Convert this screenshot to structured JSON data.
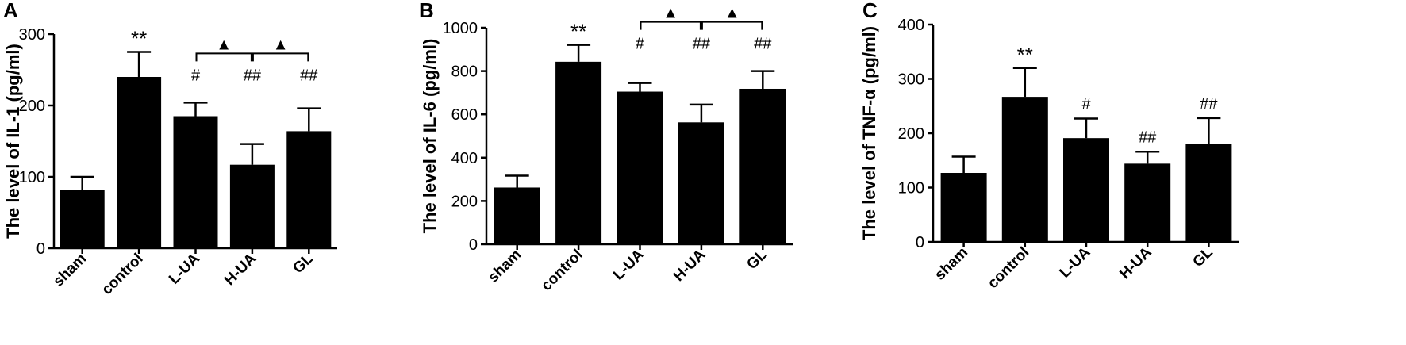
{
  "chart_data": [
    {
      "type": "bar",
      "panel_label": "A",
      "ylabel": "The level of IL-1 (pg/ml)",
      "categories": [
        "sham",
        "control",
        "L-UA",
        "H-UA",
        "GL"
      ],
      "values": [
        82,
        240,
        185,
        117,
        164
      ],
      "errors": [
        18,
        35,
        19,
        29,
        32
      ],
      "ylim": [
        0,
        300
      ],
      "yticks": [
        0,
        100,
        200,
        300
      ],
      "bar_color": "#000000",
      "annotations": [
        {
          "category": "control",
          "text": "**"
        },
        {
          "category": "L-UA",
          "text": "#"
        },
        {
          "category": "H-UA",
          "text": "##"
        },
        {
          "category": "GL",
          "text": "##"
        }
      ],
      "brackets": [
        {
          "from": "L-UA",
          "to": "H-UA",
          "text": "▲"
        },
        {
          "from": "H-UA",
          "to": "GL",
          "text": "▲"
        }
      ]
    },
    {
      "type": "bar",
      "panel_label": "B",
      "ylabel": "The level of IL-6 (pg/ml)",
      "categories": [
        "sham",
        "control",
        "L-UA",
        "H-UA",
        "GL"
      ],
      "values": [
        262,
        843,
        705,
        563,
        718
      ],
      "errors": [
        55,
        78,
        40,
        82,
        82
      ],
      "ylim": [
        0,
        1000
      ],
      "yticks": [
        0,
        200,
        400,
        600,
        800,
        1000
      ],
      "bar_color": "#000000",
      "annotations": [
        {
          "category": "control",
          "text": "**"
        },
        {
          "category": "L-UA",
          "text": "#"
        },
        {
          "category": "H-UA",
          "text": "##"
        },
        {
          "category": "GL",
          "text": "##"
        }
      ],
      "brackets": [
        {
          "from": "L-UA",
          "to": "H-UA",
          "text": "▲"
        },
        {
          "from": "H-UA",
          "to": "GL",
          "text": "▲"
        }
      ]
    },
    {
      "type": "bar",
      "panel_label": "C",
      "ylabel": "The level of TNF-α (pg/ml)",
      "categories": [
        "sham",
        "control",
        "L-UA",
        "H-UA",
        "GL"
      ],
      "values": [
        127,
        267,
        191,
        144,
        180
      ],
      "errors": [
        30,
        53,
        36,
        22,
        48
      ],
      "ylim": [
        0,
        400
      ],
      "yticks": [
        0,
        100,
        200,
        300,
        400
      ],
      "bar_color": "#000000",
      "annotations": [
        {
          "category": "control",
          "text": "**"
        },
        {
          "category": "L-UA",
          "text": "#"
        },
        {
          "category": "H-UA",
          "text": "##"
        },
        {
          "category": "GL",
          "text": "##"
        }
      ],
      "brackets": []
    }
  ]
}
